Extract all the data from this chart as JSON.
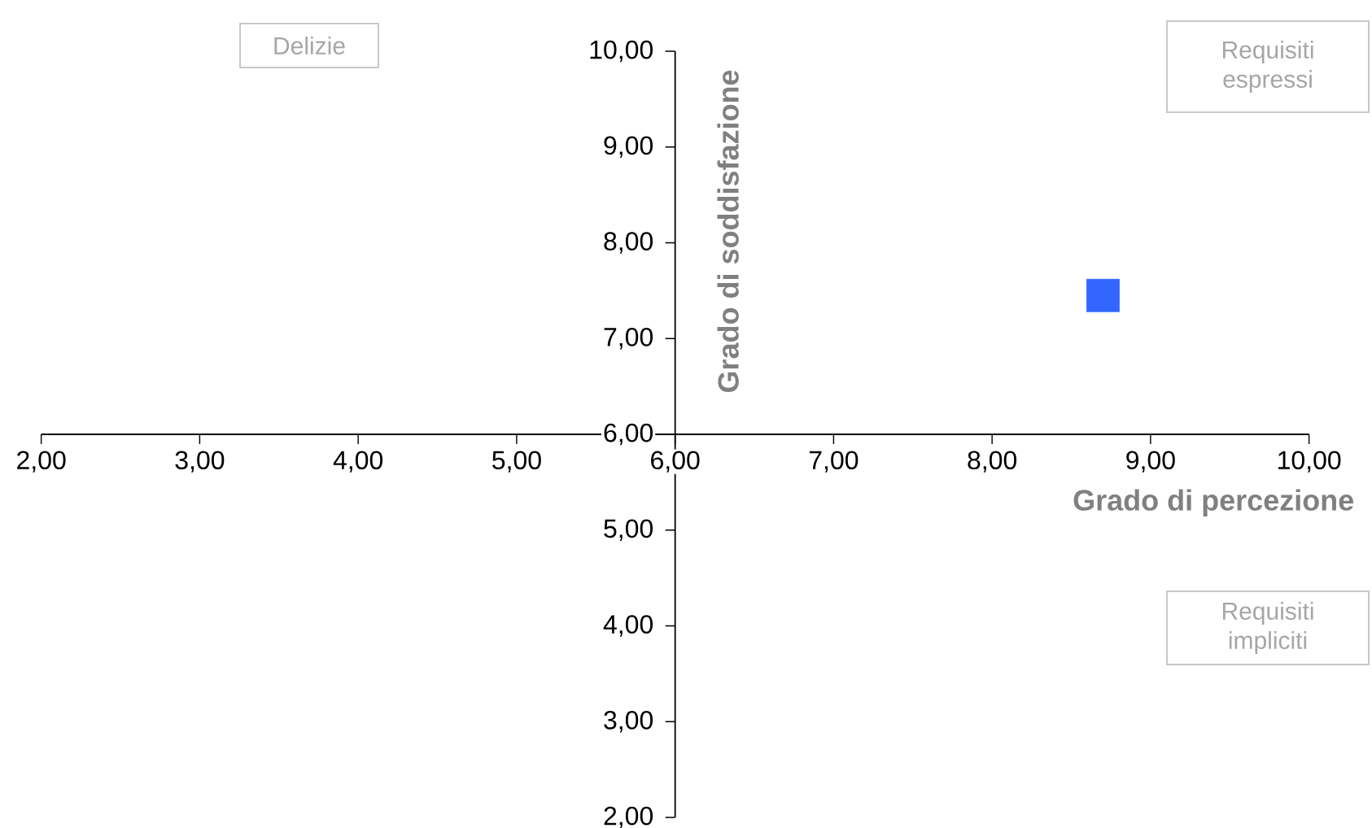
{
  "chart_data": {
    "type": "scatter",
    "xlabel": "Grado di percezione",
    "ylabel": "Grado di soddisfazione",
    "annotations": [
      "Delizie",
      "Requisiti espressi",
      "Requisiti impliciti"
    ],
    "x": [
      8.7
    ],
    "values": [
      7.45
    ],
    "color": "#3366ff",
    "marker": "square",
    "xlim": [
      2,
      10
    ],
    "ylim": [
      2,
      10
    ],
    "xticks": [
      {
        "value": 2,
        "label": "2,00"
      },
      {
        "value": 3,
        "label": "3,00"
      },
      {
        "value": 4,
        "label": "4,00"
      },
      {
        "value": 5,
        "label": "5,00"
      },
      {
        "value": 6,
        "label": "6,00"
      },
      {
        "value": 7,
        "label": "7,00"
      },
      {
        "value": 8,
        "label": "8,00"
      },
      {
        "value": 9,
        "label": "9,00"
      },
      {
        "value": 10,
        "label": "10,00"
      }
    ],
    "yticks": [
      {
        "value": 2,
        "label": "2,00"
      },
      {
        "value": 3,
        "label": "3,00"
      },
      {
        "value": 4,
        "label": "4,00"
      },
      {
        "value": 5,
        "label": "5,00"
      },
      {
        "value": 6,
        "label": "6,00"
      },
      {
        "value": 7,
        "label": "7,00"
      },
      {
        "value": 8,
        "label": "8,00"
      },
      {
        "value": 9,
        "label": "9,00"
      },
      {
        "value": 10,
        "label": "10,00"
      }
    ]
  }
}
